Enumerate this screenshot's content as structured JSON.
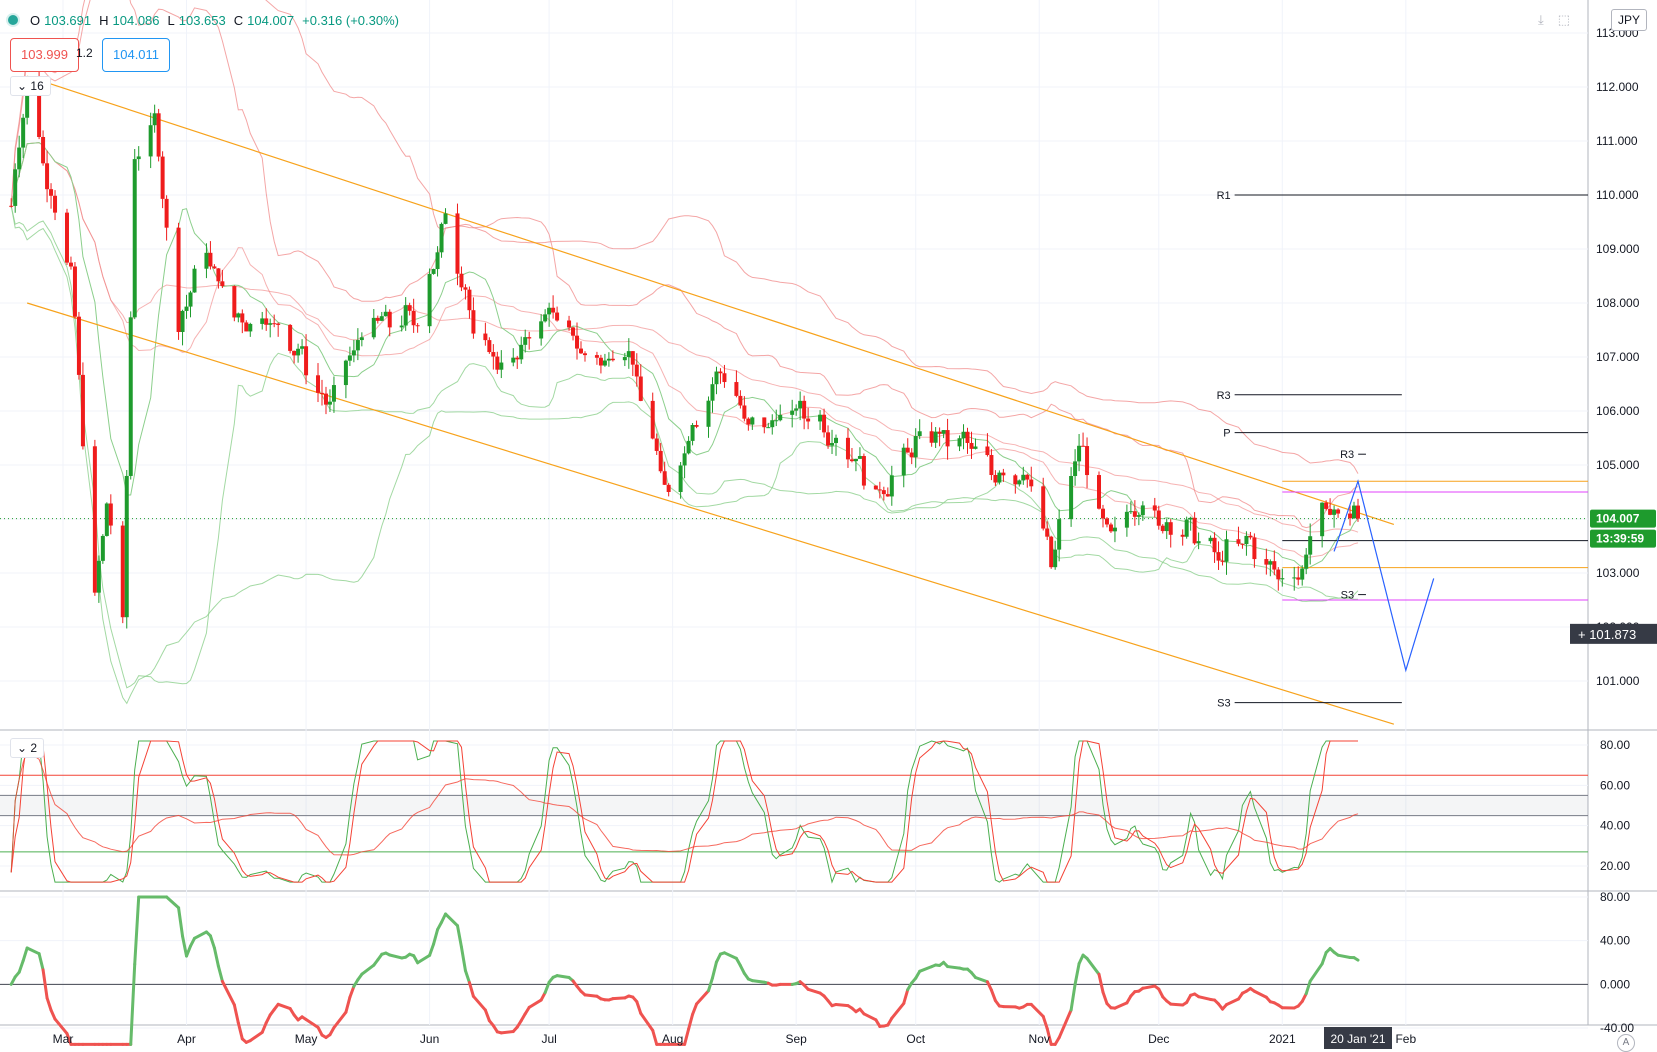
{
  "header": {
    "ohlc": [
      {
        "label": "O",
        "value": "103.691"
      },
      {
        "label": "H",
        "value": "104.086"
      },
      {
        "label": "L",
        "value": "103.653"
      },
      {
        "label": "C",
        "value": "104.007"
      }
    ],
    "change": "+0.316 (+0.30%)",
    "sell_price": "103.999",
    "spread": "1.2",
    "buy_price": "104.011",
    "currency": "JPY",
    "indicator_count_main": "16",
    "indicator_count_osc": "2",
    "auto_label": "A"
  },
  "price_axis": {
    "ticks": [
      "113.000",
      "112.000",
      "111.000",
      "110.000",
      "109.000",
      "108.000",
      "107.000",
      "106.000",
      "105.000",
      "104.000",
      "103.000",
      "102.000",
      "101.000"
    ],
    "current_price": "104.007",
    "countdown": "13:39:59",
    "crosshair_price": "101.873"
  },
  "osc1_axis": {
    "ticks": [
      "80.00",
      "60.00",
      "40.00",
      "20.00"
    ]
  },
  "osc2_axis": {
    "ticks": [
      "80.00",
      "40.00",
      "0.000",
      "-40.00"
    ]
  },
  "time_axis": {
    "labels": [
      "Mar",
      "Apr",
      "May",
      "Jun",
      "Jul",
      "Aug",
      "Sep",
      "Oct",
      "Nov",
      "Dec",
      "2021",
      "Feb"
    ],
    "highlight": "20 Jan '21"
  },
  "pivots": [
    {
      "label": "R1",
      "price": 110.0
    },
    {
      "label": "R3",
      "price": 106.3
    },
    {
      "label": "P",
      "price": 105.6
    },
    {
      "label": "R3",
      "price": 105.2
    },
    {
      "label": "S3",
      "price": 102.6
    },
    {
      "label": "S3",
      "price": 100.6
    }
  ],
  "colors": {
    "up": "#1e9b2d",
    "down": "#ef1c1c",
    "channel": "#f7a21b",
    "forecast": "#2962ff",
    "bb_red": "#f08080",
    "bb_green": "#8ccf8c",
    "magenta": "#e040fb",
    "osc_green": "#4caf50",
    "osc_red": "#f44336"
  },
  "chart_data": {
    "type": "candlestick",
    "symbol_currency": "JPY",
    "ylim": [
      100.4,
      113.3
    ],
    "date_range": [
      "2020-02-17",
      "2021-01-20"
    ],
    "last_close": 104.007,
    "waypoints": [
      [
        "2020-02-17",
        109.8
      ],
      [
        "2020-02-21",
        112.0
      ],
      [
        "2020-03-03",
        108.5
      ],
      [
        "2020-03-09",
        102.5
      ],
      [
        "2020-03-12",
        104.5
      ],
      [
        "2020-03-16",
        102.0
      ],
      [
        "2020-03-19",
        110.5
      ],
      [
        "2020-03-24",
        111.5
      ],
      [
        "2020-03-30",
        107.5
      ],
      [
        "2020-04-06",
        109.0
      ],
      [
        "2020-04-15",
        107.5
      ],
      [
        "2020-04-22",
        107.8
      ],
      [
        "2020-05-06",
        106.2
      ],
      [
        "2020-05-19",
        107.8
      ],
      [
        "2020-05-29",
        107.6
      ],
      [
        "2020-06-05",
        109.7
      ],
      [
        "2020-06-12",
        107.4
      ],
      [
        "2020-06-22",
        106.8
      ],
      [
        "2020-07-01",
        108.0
      ],
      [
        "2020-07-10",
        106.9
      ],
      [
        "2020-07-20",
        107.2
      ],
      [
        "2020-07-31",
        104.5
      ],
      [
        "2020-08-13",
        106.9
      ],
      [
        "2020-08-20",
        105.6
      ],
      [
        "2020-08-28",
        106.0
      ],
      [
        "2020-09-08",
        105.8
      ],
      [
        "2020-09-21",
        104.5
      ],
      [
        "2020-10-06",
        105.7
      ],
      [
        "2020-10-20",
        105.0
      ],
      [
        "2020-10-30",
        104.6
      ],
      [
        "2020-11-04",
        103.3
      ],
      [
        "2020-11-11",
        105.3
      ],
      [
        "2020-11-18",
        103.8
      ],
      [
        "2020-11-27",
        104.2
      ],
      [
        "2020-12-04",
        103.9
      ],
      [
        "2020-12-16",
        103.4
      ],
      [
        "2020-12-23",
        103.5
      ],
      [
        "2021-01-05",
        102.8
      ],
      [
        "2021-01-11",
        104.3
      ],
      [
        "2021-01-20",
        104.0
      ]
    ],
    "channel_upper": [
      [
        "2020-02-21",
        112.2
      ],
      [
        "2021-01-29",
        103.9
      ]
    ],
    "channel_lower": [
      [
        "2020-02-21",
        108.0
      ],
      [
        "2021-01-29",
        100.2
      ]
    ],
    "horizontal_levels": [
      104.7,
      104.5,
      103.6,
      103.1,
      102.5
    ],
    "forecast_path": [
      [
        "2021-01-14",
        103.4
      ],
      [
        "2021-01-20",
        104.7
      ],
      [
        "2021-02-01",
        101.2
      ],
      [
        "2021-02-08",
        102.9
      ]
    ],
    "oscillator_1": {
      "type": "stochastic",
      "ylim": [
        10,
        82
      ],
      "levels": [
        65,
        55,
        45,
        27
      ]
    },
    "oscillator_2": {
      "type": "momentum",
      "ylim": [
        -55,
        82
      ],
      "levels": [
        0
      ]
    }
  }
}
